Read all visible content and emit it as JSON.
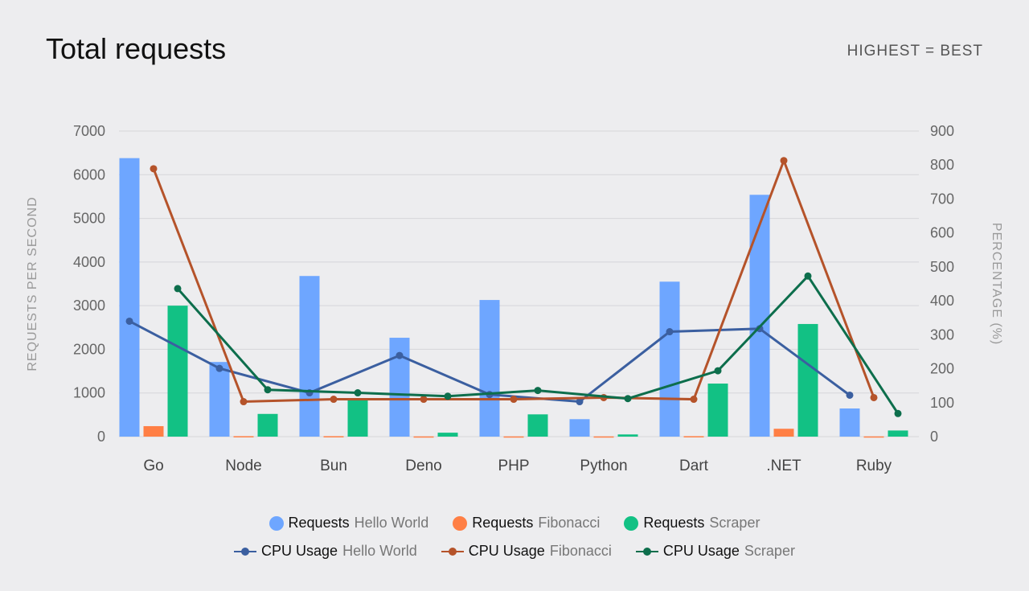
{
  "header": {
    "title": "Total requests",
    "note": "HIGHEST = BEST"
  },
  "chart_data": {
    "type": "bar",
    "title": "Total requests",
    "categories": [
      "Go",
      "Node",
      "Bun",
      "Deno",
      "PHP",
      "Python",
      "Dart",
      ".NET",
      "Ruby"
    ],
    "ylabel": "REQUESTS PER SECOND",
    "y2label": "PERCENTAGE (%)",
    "ylim": [
      0,
      7000
    ],
    "y2lim": [
      0,
      900
    ],
    "yticks": [
      0,
      1000,
      2000,
      3000,
      4000,
      5000,
      6000,
      7000
    ],
    "y2ticks": [
      0,
      100,
      200,
      300,
      400,
      500,
      600,
      700,
      800,
      900
    ],
    "grid": true,
    "legend": "bottom",
    "bar_series": [
      {
        "name": "Requests",
        "sub": "Hello World",
        "color": "#6ea6ff",
        "values": [
          6380,
          1710,
          3680,
          2265,
          3130,
          400,
          3550,
          5540,
          645
        ]
      },
      {
        "name": "Requests",
        "sub": "Fibonacci",
        "color": "#ff7f45",
        "values": [
          240,
          10,
          10,
          5,
          5,
          5,
          10,
          180,
          5
        ]
      },
      {
        "name": "Requests",
        "sub": "Scraper",
        "color": "#12c184",
        "values": [
          3000,
          520,
          830,
          90,
          510,
          50,
          1215,
          2580,
          140
        ]
      }
    ],
    "line_series": [
      {
        "name": "CPU Usage",
        "sub": "Hello World",
        "color": "#3b5fa0",
        "axis": "right",
        "values": [
          340,
          201,
          129,
          239,
          124,
          103,
          309,
          318,
          122
        ]
      },
      {
        "name": "CPU Usage",
        "sub": "Fibonacci",
        "color": "#b5532a",
        "axis": "right",
        "values": [
          789,
          103,
          110,
          110,
          110,
          115,
          110,
          813,
          115
        ]
      },
      {
        "name": "CPU Usage",
        "sub": "Scraper",
        "color": "#0d6e4c",
        "axis": "right",
        "values": [
          436,
          138,
          129,
          119,
          136,
          112,
          194,
          473,
          68
        ]
      }
    ]
  }
}
